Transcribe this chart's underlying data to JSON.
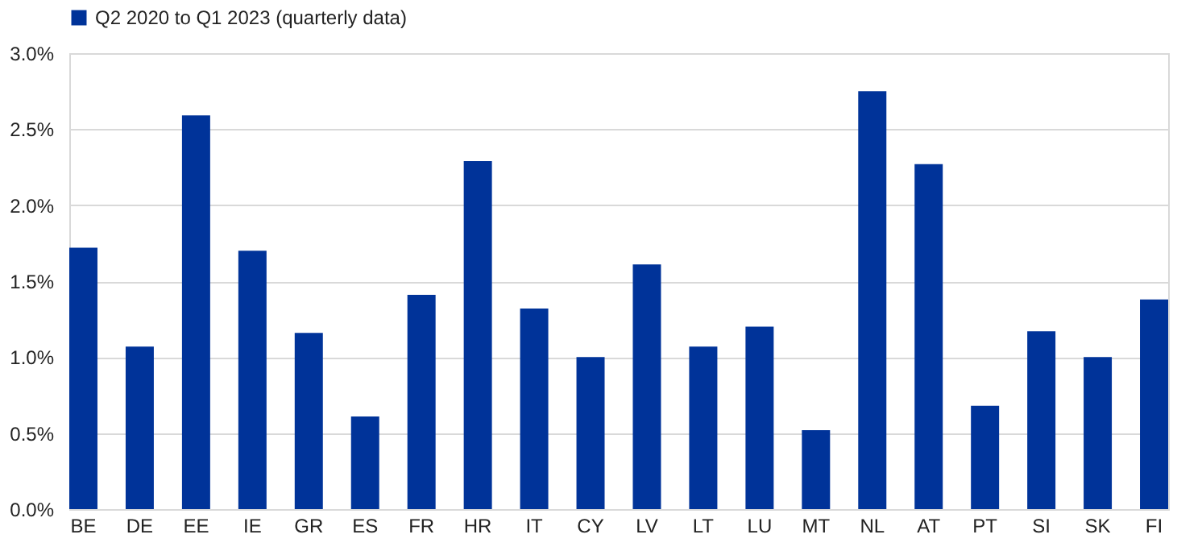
{
  "chart_data": {
    "type": "bar",
    "categories": [
      "BE",
      "DE",
      "EE",
      "IE",
      "GR",
      "ES",
      "FR",
      "HR",
      "IT",
      "CY",
      "LV",
      "LT",
      "LU",
      "MT",
      "NL",
      "AT",
      "PT",
      "SI",
      "SK",
      "FI"
    ],
    "series": [
      {
        "name": "Q2 2020 to Q1 2023 (quarterly data)",
        "color": "#003399",
        "values": [
          1.72,
          1.07,
          2.59,
          1.7,
          1.16,
          0.61,
          1.41,
          2.29,
          1.32,
          1.0,
          1.61,
          1.07,
          1.2,
          0.52,
          2.75,
          2.27,
          0.68,
          1.17,
          1.0,
          1.38
        ]
      }
    ],
    "ylim": [
      0,
      3
    ],
    "yticks": [
      {
        "value": 0,
        "label": "0.0%"
      },
      {
        "value": 0.5,
        "label": "0.5%"
      },
      {
        "value": 1,
        "label": "1.0%"
      },
      {
        "value": 1.5,
        "label": "1.5%"
      },
      {
        "value": 2,
        "label": "2.0%"
      },
      {
        "value": 2.5,
        "label": "2.5%"
      },
      {
        "value": 3,
        "label": "3.0%"
      }
    ],
    "grid": "y",
    "legend": "top left"
  }
}
